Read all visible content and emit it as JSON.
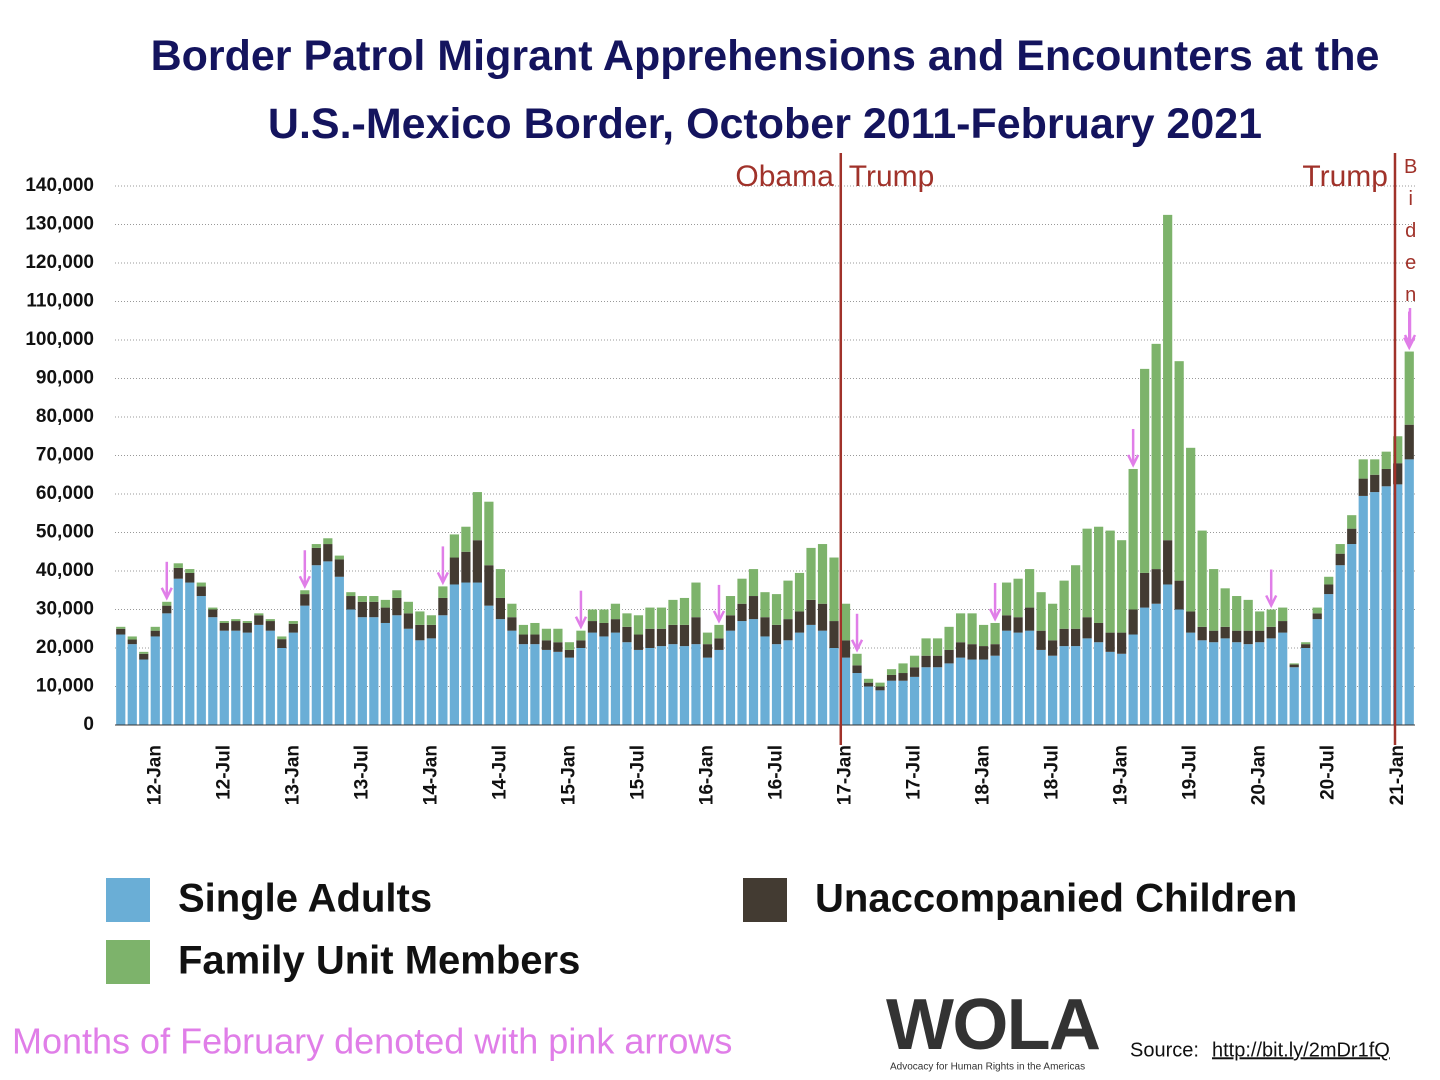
{
  "chart_data": {
    "type": "stacked-bar",
    "title": "Border Patrol Migrant Apprehensions and Encounters at the U.S.-Mexico Border, October 2011-February 2021",
    "categories": [
      null,
      null,
      null,
      "12-Jan",
      null,
      null,
      null,
      null,
      null,
      "12-Jul",
      null,
      null,
      null,
      null,
      null,
      "13-Jan",
      null,
      null,
      null,
      null,
      null,
      "13-Jul",
      null,
      null,
      null,
      null,
      null,
      "14-Jan",
      null,
      null,
      null,
      null,
      null,
      "14-Jul",
      null,
      null,
      null,
      null,
      null,
      "15-Jan",
      null,
      null,
      null,
      null,
      null,
      "15-Jul",
      null,
      null,
      null,
      null,
      null,
      "16-Jan",
      null,
      null,
      null,
      null,
      null,
      "16-Jul",
      null,
      null,
      null,
      null,
      null,
      "17-Jan",
      null,
      null,
      null,
      null,
      null,
      "17-Jul",
      null,
      null,
      null,
      null,
      null,
      "18-Jan",
      null,
      null,
      null,
      null,
      null,
      "18-Jul",
      null,
      null,
      null,
      null,
      null,
      "19-Jan",
      null,
      null,
      null,
      null,
      null,
      "19-Jul",
      null,
      null,
      null,
      null,
      null,
      "20-Jan",
      null,
      null,
      null,
      null,
      null,
      "20-Jul",
      null,
      null,
      null,
      null,
      null,
      "21-Jan",
      null
    ],
    "series": [
      {
        "name": "Single Adults",
        "color": "#6aaed6",
        "values": [
          23500,
          21000,
          17000,
          23000,
          29000,
          38000,
          37000,
          33500,
          28000,
          24500,
          24500,
          24000,
          26000,
          24500,
          20000,
          24000,
          31000,
          41500,
          42500,
          38500,
          30000,
          28000,
          28000,
          26500,
          28500,
          25000,
          22000,
          22500,
          28500,
          36500,
          37000,
          37000,
          31000,
          27500,
          24500,
          21000,
          21000,
          19500,
          19000,
          17500,
          20000,
          24000,
          23000,
          24000,
          21500,
          19500,
          20000,
          20500,
          21000,
          20500,
          21000,
          17500,
          19500,
          24500,
          27000,
          27500,
          23000,
          21000,
          22000,
          24000,
          26000,
          24500,
          20000,
          17500,
          13500,
          10000,
          9000,
          11500,
          11500,
          12500,
          15000,
          15000,
          16000,
          17500,
          17000,
          17000,
          18000,
          24500,
          24000,
          24500,
          19500,
          18000,
          20500,
          20500,
          22500,
          21500,
          19000,
          18500,
          23500,
          30500,
          31500,
          36500,
          30000,
          24000,
          22000,
          21500,
          22500,
          21500,
          21000,
          21500,
          22500,
          24000,
          15000,
          20000,
          27500,
          34000,
          41500,
          47000,
          59500,
          60500,
          62000,
          62500,
          69000
        ]
      },
      {
        "name": "Unaccompanied Children",
        "color": "#433b32",
        "values": [
          1500,
          1200,
          1500,
          1500,
          2000,
          2800,
          2500,
          2500,
          2000,
          2000,
          2500,
          2500,
          2500,
          2500,
          2300,
          2300,
          3000,
          4500,
          4500,
          4500,
          3500,
          4000,
          4000,
          4000,
          4500,
          4000,
          4000,
          3500,
          4500,
          7000,
          8000,
          11000,
          10500,
          5500,
          3500,
          2500,
          2500,
          2500,
          2500,
          2000,
          2000,
          3000,
          3500,
          3500,
          4000,
          4000,
          5000,
          4500,
          5000,
          5500,
          7000,
          3500,
          3000,
          4000,
          4500,
          6000,
          5000,
          5000,
          5500,
          5500,
          6500,
          7000,
          7000,
          4500,
          2000,
          1000,
          1000,
          1500,
          2000,
          2500,
          3000,
          3000,
          3500,
          4000,
          4000,
          3500,
          3000,
          4000,
          4000,
          6000,
          5000,
          4000,
          4500,
          4500,
          5500,
          5000,
          5000,
          5500,
          6500,
          9000,
          9000,
          11500,
          7500,
          5500,
          3500,
          3000,
          3000,
          3000,
          3500,
          3000,
          3000,
          3000,
          700,
          1000,
          1500,
          2500,
          3000,
          4000,
          4500,
          4500,
          4500,
          5500,
          9000
        ]
      },
      {
        "name": "Family Unit Members",
        "color": "#7db36b",
        "values": [
          500,
          800,
          500,
          1000,
          1000,
          1200,
          1000,
          1000,
          500,
          500,
          500,
          500,
          500,
          500,
          700,
          700,
          1000,
          1000,
          1500,
          1000,
          1000,
          1500,
          1500,
          2000,
          2000,
          3000,
          3500,
          2500,
          3000,
          6000,
          6500,
          12500,
          16500,
          7500,
          3500,
          2500,
          3000,
          3000,
          3500,
          2000,
          2500,
          3000,
          3500,
          4000,
          3500,
          5000,
          5500,
          5500,
          6500,
          7000,
          9000,
          3000,
          3500,
          5000,
          6500,
          7000,
          6500,
          8000,
          10000,
          10000,
          13500,
          15500,
          16500,
          9500,
          3000,
          1000,
          1000,
          1500,
          2500,
          3000,
          4500,
          4500,
          6000,
          7500,
          8000,
          5500,
          5500,
          8500,
          10000,
          10000,
          10000,
          9500,
          12500,
          16500,
          23000,
          25000,
          26500,
          24000,
          36500,
          53000,
          58500,
          84500,
          57000,
          42500,
          25000,
          16000,
          10000,
          9000,
          8000,
          5000,
          4500,
          3500,
          300,
          500,
          1500,
          2000,
          2500,
          3500,
          5000,
          4000,
          4500,
          7000,
          19000
        ]
      }
    ],
    "ylim": [
      0,
      140000
    ],
    "yticks": [
      0,
      {
        "value": 10000,
        "label": "10,000"
      },
      {
        "value": 20000,
        "label": "20,000"
      },
      {
        "value": 30000,
        "label": "30,000"
      },
      {
        "value": 40000,
        "label": "40,000"
      },
      {
        "value": 50000,
        "label": "50,000"
      },
      {
        "value": 60000,
        "label": "60,000"
      },
      {
        "value": 70000,
        "label": "70,000"
      },
      {
        "value": 80000,
        "label": "80,000"
      },
      {
        "value": 90000,
        "label": "90,000"
      },
      {
        "value": 100000,
        "label": "100,000"
      },
      {
        "value": 110000,
        "label": "110,000"
      },
      {
        "value": 120000,
        "label": "120,000"
      },
      {
        "value": 130000,
        "label": "130,000"
      },
      {
        "value": 140000,
        "label": "140,000"
      }
    ],
    "grid": true,
    "annotations": [
      "Obama",
      "Trump",
      "Trump",
      "Biden"
    ],
    "note": "Months of February denoted with pink arrows",
    "logo": "WOLA",
    "logo_tagline": "Advocacy for Human Rights in the Americas",
    "source_label": "Source:",
    "source_link": "http://bit.ly/2mDr1fQ"
  }
}
